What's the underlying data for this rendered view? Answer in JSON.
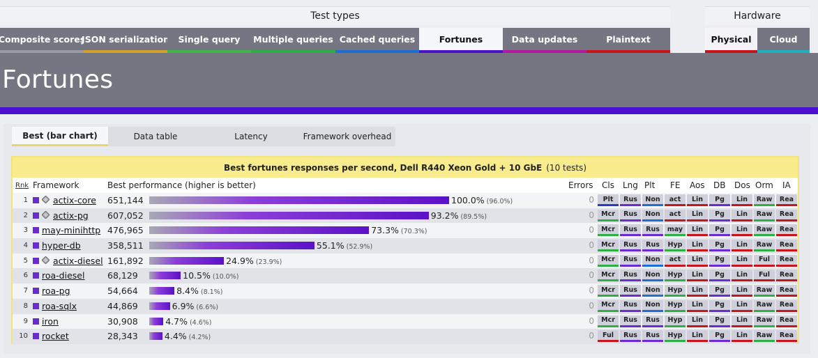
{
  "groups": {
    "tests": "Test types",
    "hardware": "Hardware"
  },
  "tabs": [
    {
      "label": "Composite scores",
      "color": "#9a9ba6"
    },
    {
      "label": "JSON serialization",
      "color": "#d6a12a"
    },
    {
      "label": "Single query",
      "color": "#3fb54a"
    },
    {
      "label": "Multiple queries",
      "color": "#2fae45"
    },
    {
      "label": "Cached queries",
      "color": "#1e6ed6"
    },
    {
      "label": "Fortunes",
      "color": "#4a0fcf"
    },
    {
      "label": "Data updates",
      "color": "#b3189e"
    },
    {
      "label": "Plaintext",
      "color": "#c8151b"
    }
  ],
  "hw_tabs": [
    {
      "label": "Physical",
      "color": "#c8151b"
    },
    {
      "label": "Cloud",
      "color": "#1fb0c2"
    }
  ],
  "hero_title": "Fortunes",
  "view_tabs": [
    "Best (bar chart)",
    "Data table",
    "Latency",
    "Framework overhead"
  ],
  "results": {
    "title": "Best fortunes responses per second, Dell R440 Xeon Gold + 10 GbE",
    "count": "(10 tests)",
    "headers": {
      "rank": "Rnk",
      "framework": "Framework",
      "perf": "Best performance (higher is better)",
      "errors": "Errors",
      "cls": "Cls",
      "lng": "Lng",
      "plt": "Plt",
      "fe": "FE",
      "aos": "Aos",
      "db": "DB",
      "dos": "Dos",
      "orm": "Orm",
      "ia": "IA"
    },
    "rows": [
      {
        "rank": "1",
        "framework": "actix-core",
        "diamond": true,
        "perf": "651,144",
        "pct": 100.0,
        "pct_label": "100.0%",
        "sub": "(96.0%)",
        "errors": "0",
        "cls": "Plt",
        "lng": "Rus",
        "plt": "Non",
        "fe": "act",
        "aos": "Lin",
        "db": "Pg",
        "dos": "Lin",
        "orm": "Raw",
        "ia": "Rea"
      },
      {
        "rank": "2",
        "framework": "actix-pg",
        "diamond": true,
        "perf": "607,052",
        "pct": 93.2,
        "pct_label": "93.2%",
        "sub": "(89.5%)",
        "errors": "0",
        "cls": "Mcr",
        "lng": "Rus",
        "plt": "Non",
        "fe": "act",
        "aos": "Lin",
        "db": "Pg",
        "dos": "Lin",
        "orm": "Raw",
        "ia": "Rea"
      },
      {
        "rank": "3",
        "framework": "may-minihttp",
        "diamond": false,
        "perf": "476,965",
        "pct": 73.3,
        "pct_label": "73.3%",
        "sub": "(70.3%)",
        "errors": "0",
        "cls": "Mcr",
        "lng": "Rus",
        "plt": "Rus",
        "fe": "may",
        "aos": "Lin",
        "db": "Pg",
        "dos": "Lin",
        "orm": "Raw",
        "ia": "Rea"
      },
      {
        "rank": "4",
        "framework": "hyper-db",
        "diamond": false,
        "perf": "358,511",
        "pct": 55.1,
        "pct_label": "55.1%",
        "sub": "(52.9%)",
        "errors": "0",
        "cls": "Mcr",
        "lng": "Rus",
        "plt": "Rus",
        "fe": "Hyp",
        "aos": "Lin",
        "db": "Pg",
        "dos": "Lin",
        "orm": "Raw",
        "ia": "Rea"
      },
      {
        "rank": "5",
        "framework": "actix-diesel",
        "diamond": true,
        "perf": "161,892",
        "pct": 24.9,
        "pct_label": "24.9%",
        "sub": "(23.9%)",
        "errors": "0",
        "cls": "Mcr",
        "lng": "Rus",
        "plt": "Non",
        "fe": "act",
        "aos": "Lin",
        "db": "Pg",
        "dos": "Lin",
        "orm": "Ful",
        "ia": "Rea"
      },
      {
        "rank": "6",
        "framework": "roa-diesel",
        "diamond": false,
        "perf": "68,129",
        "pct": 10.5,
        "pct_label": "10.5%",
        "sub": "(10.0%)",
        "errors": "0",
        "cls": "Mcr",
        "lng": "Rus",
        "plt": "Non",
        "fe": "Hyp",
        "aos": "Lin",
        "db": "Pg",
        "dos": "Lin",
        "orm": "Ful",
        "ia": "Rea"
      },
      {
        "rank": "7",
        "framework": "roa-pg",
        "diamond": false,
        "perf": "54,664",
        "pct": 8.4,
        "pct_label": "8.4%",
        "sub": "(8.1%)",
        "errors": "0",
        "cls": "Mcr",
        "lng": "Rus",
        "plt": "Non",
        "fe": "Hyp",
        "aos": "Lin",
        "db": "Pg",
        "dos": "Lin",
        "orm": "Raw",
        "ia": "Rea"
      },
      {
        "rank": "8",
        "framework": "roa-sqlx",
        "diamond": false,
        "perf": "44,869",
        "pct": 6.9,
        "pct_label": "6.9%",
        "sub": "(6.6%)",
        "errors": "0",
        "cls": "Mcr",
        "lng": "Rus",
        "plt": "Non",
        "fe": "Hyp",
        "aos": "Lin",
        "db": "Pg",
        "dos": "Lin",
        "orm": "Raw",
        "ia": "Rea"
      },
      {
        "rank": "9",
        "framework": "iron",
        "diamond": false,
        "perf": "30,908",
        "pct": 4.7,
        "pct_label": "4.7%",
        "sub": "(4.6%)",
        "errors": "0",
        "cls": "Mcr",
        "lng": "Rus",
        "plt": "Rus",
        "fe": "Hyp",
        "aos": "Lin",
        "db": "Pg",
        "dos": "Lin",
        "orm": "Raw",
        "ia": "Rea"
      },
      {
        "rank": "10",
        "framework": "rocket",
        "diamond": false,
        "perf": "28,343",
        "pct": 4.4,
        "pct_label": "4.4%",
        "sub": "(4.2%)",
        "errors": "0",
        "cls": "Ful",
        "lng": "Rus",
        "plt": "Rus",
        "fe": "Hyp",
        "aos": "Lin",
        "db": "Pg",
        "dos": "Lin",
        "orm": "Raw",
        "ia": "Rea"
      }
    ]
  },
  "badge_colors": {
    "cls": {
      "Plt": "#2a3bc0",
      "Mcr": "#2fae45",
      "Ful": "#c8151b"
    },
    "lng": "#6a2bd0",
    "plt": {
      "Non": "#1e6ed6",
      "Rus": "#6a2bd0"
    },
    "fe": {
      "act": "#c8151b",
      "may": "#2fae45",
      "Hyp": "#2fae45"
    },
    "aos": "#c8151b",
    "db": "#6a2bd0",
    "dos": "#c8151b",
    "orm": {
      "Raw": "#2fae45",
      "Ful": "#c8151b"
    },
    "ia": "#c8151b"
  }
}
